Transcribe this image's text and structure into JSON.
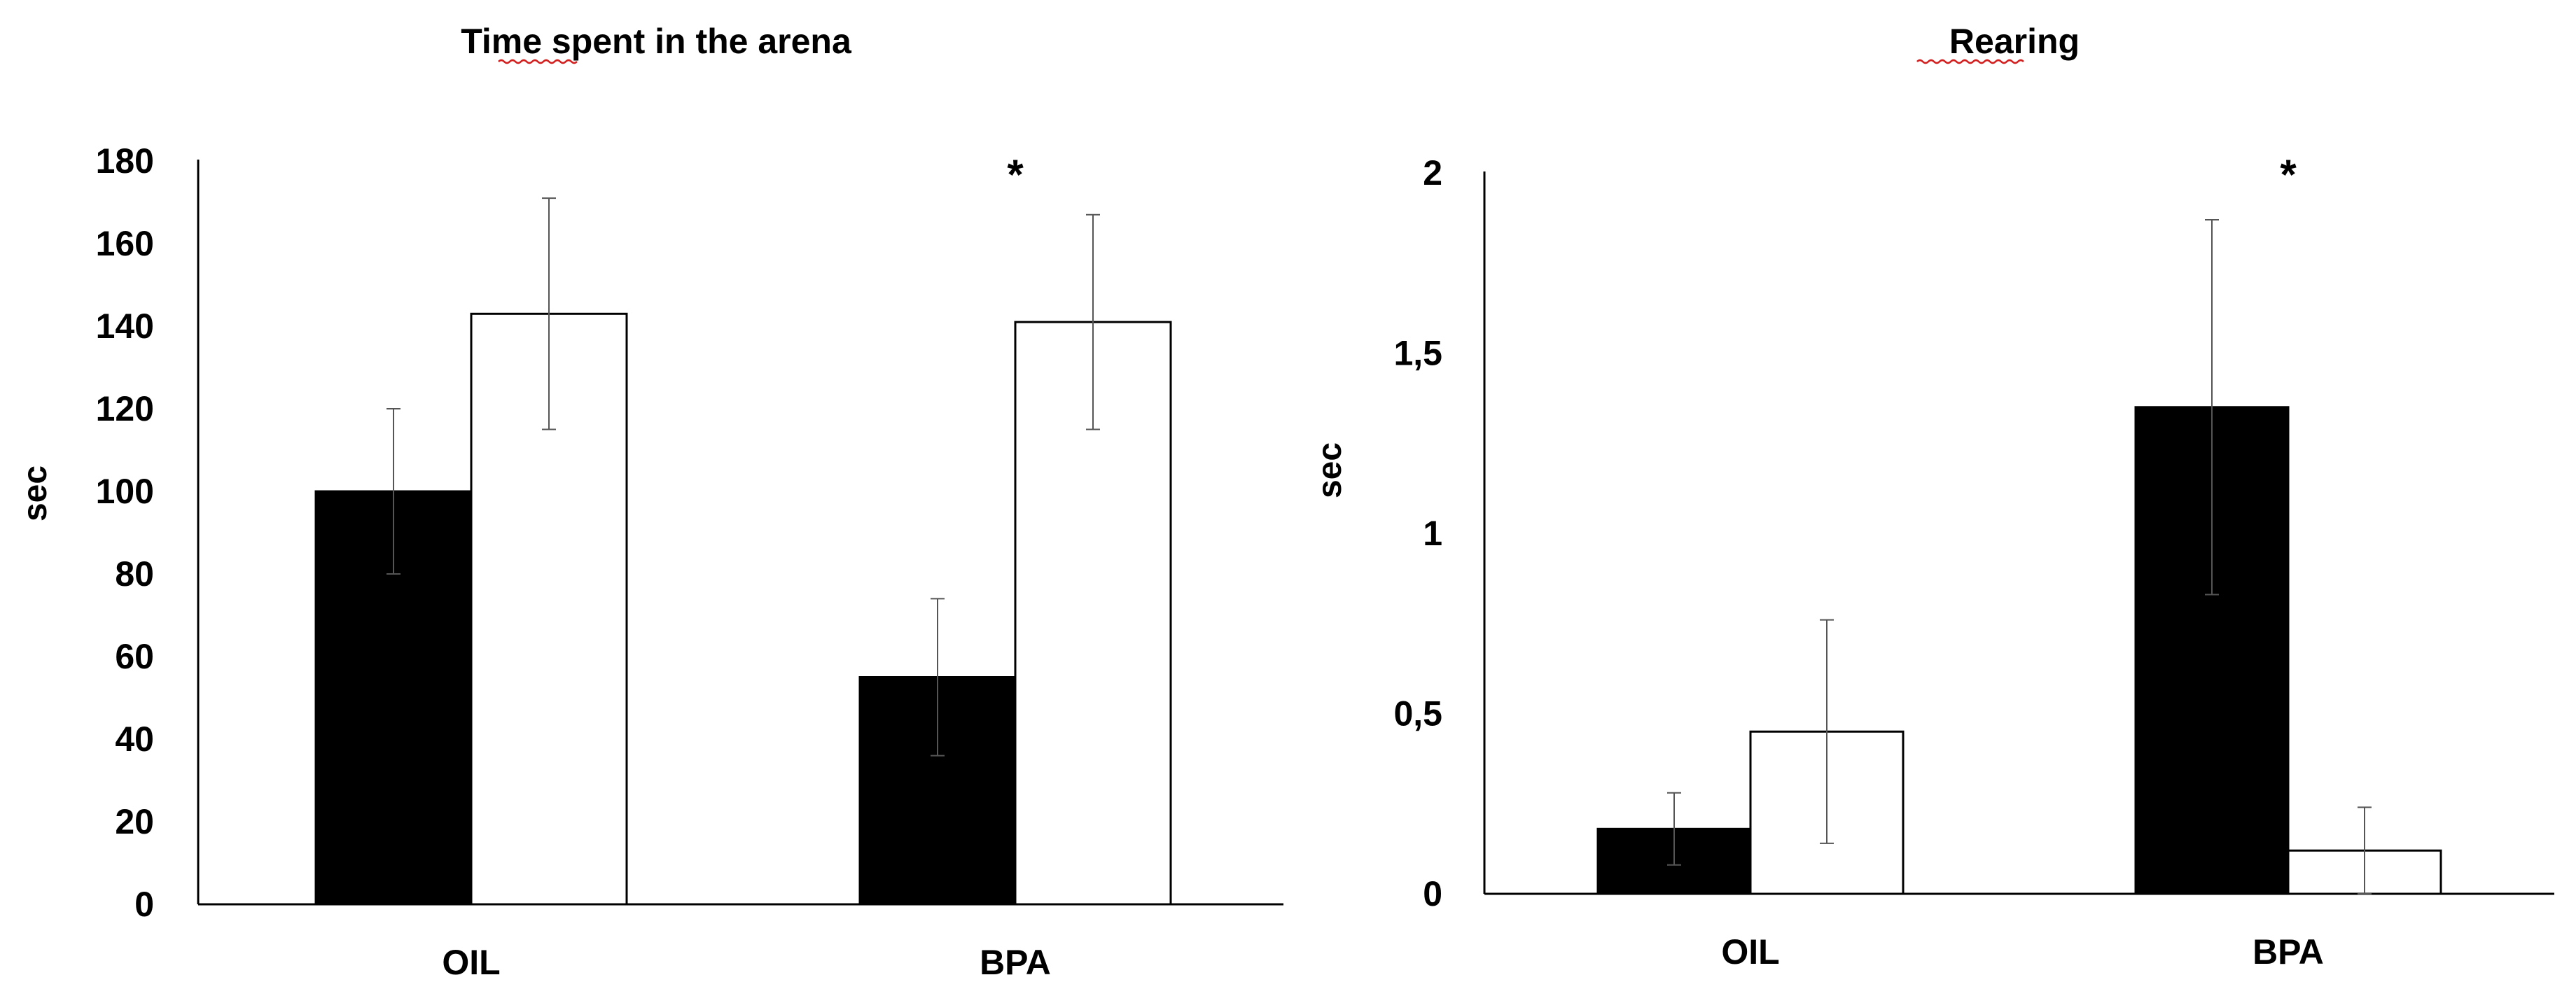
{
  "chart_data": [
    {
      "type": "bar",
      "title": "Time spent in the arena",
      "ylabel": "sec",
      "xlabel": "",
      "categories": [
        "OIL",
        "BPA"
      ],
      "ylim": [
        0,
        180
      ],
      "yticks": [
        0,
        20,
        40,
        60,
        80,
        100,
        120,
        140,
        160,
        180
      ],
      "ytick_labels": [
        "0",
        "20",
        "40",
        "60",
        "80",
        "100",
        "120",
        "140",
        "160",
        "180"
      ],
      "grid": false,
      "legend": "none",
      "series": [
        {
          "name": "filled",
          "color": "#000000",
          "values": [
            100,
            55
          ],
          "error": [
            20,
            19
          ]
        },
        {
          "name": "open",
          "color": "#ffffff",
          "values": [
            143,
            141
          ],
          "error": [
            28,
            26
          ]
        }
      ],
      "annotations": [
        {
          "category": "BPA",
          "text": "*"
        }
      ]
    },
    {
      "type": "bar",
      "title": "Rearing",
      "ylabel": "sec",
      "xlabel": "",
      "categories": [
        "OIL",
        "BPA"
      ],
      "ylim": [
        0,
        2
      ],
      "yticks": [
        0,
        0.5,
        1,
        1.5,
        2
      ],
      "ytick_labels": [
        "0",
        "0,5",
        "1",
        "1,5",
        "2"
      ],
      "grid": false,
      "legend": "none",
      "series": [
        {
          "name": "filled",
          "color": "#000000",
          "values": [
            0.18,
            1.35
          ],
          "error": [
            0.1,
            0.52
          ]
        },
        {
          "name": "open",
          "color": "#ffffff",
          "values": [
            0.45,
            0.12
          ],
          "error": [
            0.31,
            0.12
          ]
        }
      ],
      "annotations": [
        {
          "category": "BPA",
          "text": "*"
        }
      ]
    }
  ]
}
